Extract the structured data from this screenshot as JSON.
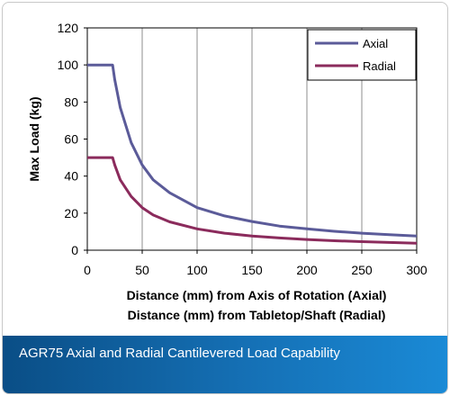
{
  "caption": "AGR75 Axial and Radial Cantilevered Load Capability",
  "chart_data": {
    "type": "line",
    "xlabel_lines": [
      "Distance (mm) from Axis of Rotation (Axial)",
      "Distance (mm) from Tabletop/Shaft (Radial)"
    ],
    "ylabel": "Max Load (kg)",
    "xlim": [
      0,
      300
    ],
    "ylim": [
      0,
      120
    ],
    "xticks": [
      0,
      50,
      100,
      150,
      200,
      250,
      300
    ],
    "yticks": [
      0,
      20,
      40,
      60,
      80,
      100,
      120
    ],
    "grid": "vertical",
    "legend_position": "top-right",
    "series": [
      {
        "name": "Axial",
        "color": "#5b5b99",
        "x": [
          0,
          23,
          25,
          30,
          40,
          50,
          60,
          75,
          100,
          125,
          150,
          175,
          200,
          225,
          250,
          275,
          300
        ],
        "y": [
          100,
          100,
          92,
          77,
          58,
          46,
          38,
          31,
          23,
          18.5,
          15.5,
          13,
          11.5,
          10.2,
          9.2,
          8.4,
          7.7
        ]
      },
      {
        "name": "Radial",
        "color": "#8b2b5c",
        "x": [
          0,
          23,
          25,
          30,
          40,
          50,
          60,
          75,
          100,
          125,
          150,
          175,
          200,
          225,
          250,
          275,
          300
        ],
        "y": [
          50,
          50,
          46,
          38,
          29,
          23,
          19,
          15.3,
          11.5,
          9.2,
          7.7,
          6.6,
          5.8,
          5.1,
          4.6,
          4.2,
          3.8
        ]
      }
    ]
  }
}
